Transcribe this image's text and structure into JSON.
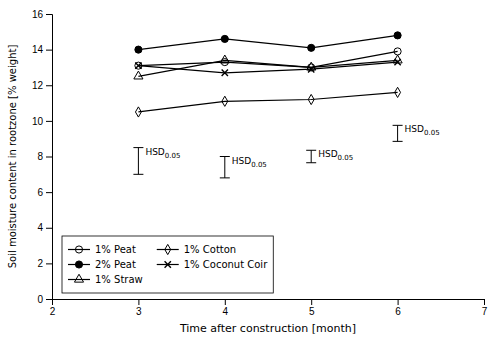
{
  "chart_data": {
    "type": "line",
    "xlabel": "Time after construction [month]",
    "ylabel": "Soil moisture content in rootzone [% weight]",
    "x": [
      3,
      4,
      5,
      6
    ],
    "series": [
      {
        "name": "1% Peat",
        "color": "black",
        "marker": "circle-open",
        "values": [
          13.1,
          13.3,
          13.0,
          13.9
        ]
      },
      {
        "name": "2% Peat",
        "color": "black",
        "marker": "circle",
        "values": [
          14.0,
          14.6,
          14.1,
          14.8
        ]
      },
      {
        "name": "1% Straw",
        "color": "black",
        "marker": "triangle-open",
        "values": [
          12.5,
          13.4,
          13.0,
          13.4
        ]
      },
      {
        "name": "1% Cotton",
        "color": "black",
        "marker": "diamond-open",
        "values": [
          10.5,
          11.1,
          11.2,
          11.6
        ]
      },
      {
        "name": "1% Coconut Coir",
        "color": "black",
        "marker": "x",
        "values": [
          13.1,
          12.7,
          12.9,
          13.3
        ]
      }
    ],
    "annotations": [
      {
        "x": 3.0,
        "y_top": 8.5,
        "y_bottom": 7.0,
        "label": "HSD0.05"
      },
      {
        "x": 4.0,
        "y_top": 8.0,
        "y_bottom": 6.8,
        "label": "HSD0.05"
      },
      {
        "x": 5.0,
        "y_top": 8.35,
        "y_bottom": 7.65,
        "label": "HSD0.05"
      },
      {
        "x": 6.0,
        "y_top": 9.75,
        "y_bottom": 8.85,
        "label": "HSD0.05"
      }
    ],
    "xlim": [
      2,
      7
    ],
    "xticks": [
      2,
      3,
      4,
      5,
      6,
      7
    ],
    "ylim": [
      0,
      16
    ],
    "yticks": [
      0,
      2,
      4,
      6,
      8,
      10,
      12,
      14,
      16
    ],
    "grid": false,
    "legend": "lower left"
  }
}
